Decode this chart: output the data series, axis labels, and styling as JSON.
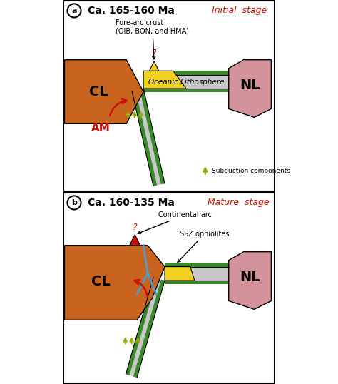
{
  "panel_a_title": "Ca. 165-160 Ma",
  "panel_b_title": "Ca. 160-135 Ma",
  "stage_a": "Initial  stage",
  "stage_b": "Mature  stage",
  "cl_color": "#C8641E",
  "nl_color": "#D4929A",
  "oceanic_litho_color": "#C8C8C8",
  "green_stripe_color": "#3A8A2A",
  "yellow_color": "#F0D020",
  "red_color": "#CC1100",
  "blue_color": "#5599CC",
  "yellow_green": "#99AA00",
  "bg_color": "#FFFFFF"
}
